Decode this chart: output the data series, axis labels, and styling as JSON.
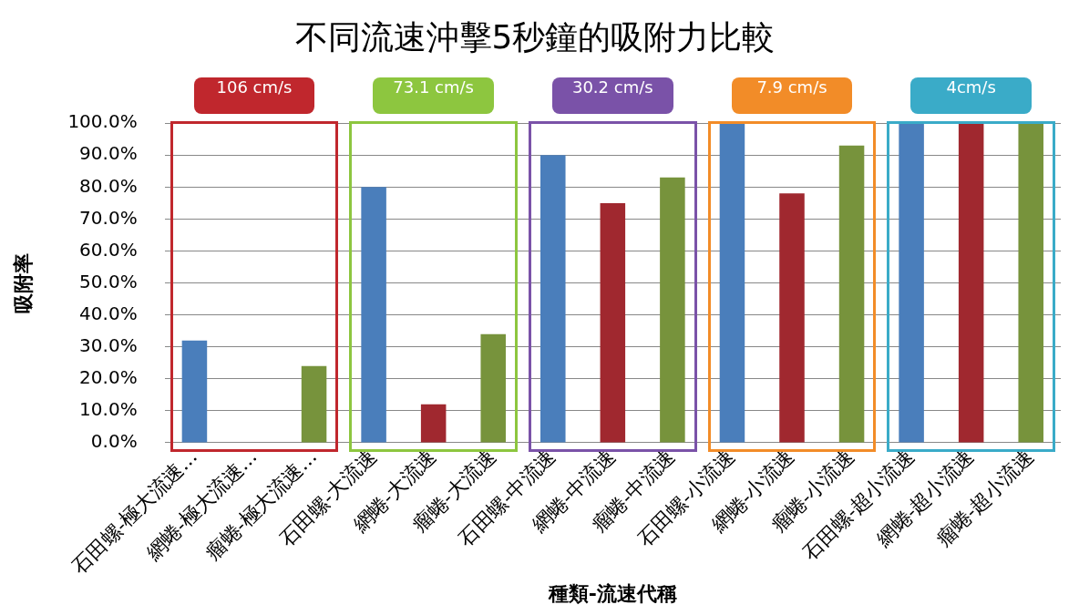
{
  "chart_data": {
    "type": "bar",
    "title": "不同流速沖擊5秒鐘的吸附力比較",
    "xlabel": "種類-流速代稱",
    "ylabel": "吸附率",
    "categories": [
      "石田螺-極大流速...",
      "網蜷-極大流速...",
      "瘤蜷-極大流速...",
      "石田螺-大流速",
      "網蜷-大流速",
      "瘤蜷-大流速",
      "石田螺-中流速",
      "網蜷-中流速",
      "瘤蜷-中流速",
      "石田螺-小流速",
      "網蜷-小流速",
      "瘤蜷-小流速",
      "石田螺-超小流速",
      "網蜷-超小流速",
      "瘤蜷-超小流速"
    ],
    "values": [
      32,
      0,
      24,
      80,
      12,
      34,
      90,
      75,
      83,
      100,
      78,
      93,
      100,
      100,
      100
    ],
    "colors": [
      "#4a7ebb",
      "#a0282f",
      "#77933c",
      "#4a7ebb",
      "#a0282f",
      "#77933c",
      "#4a7ebb",
      "#a0282f",
      "#77933c",
      "#4a7ebb",
      "#a0282f",
      "#77933c",
      "#4a7ebb",
      "#a0282f",
      "#77933c"
    ],
    "ylim": [
      0,
      100
    ],
    "yticks": [
      {
        "value": 0,
        "label": "0.0%"
      },
      {
        "value": 10,
        "label": "10.0%"
      },
      {
        "value": 20,
        "label": "20.0%"
      },
      {
        "value": 30,
        "label": "30.0%"
      },
      {
        "value": 40,
        "label": "40.0%"
      },
      {
        "value": 50,
        "label": "50.0%"
      },
      {
        "value": 60,
        "label": "60.0%"
      },
      {
        "value": 70,
        "label": "70.0%"
      },
      {
        "value": 80,
        "label": "80.0%"
      },
      {
        "value": 90,
        "label": "90.0%"
      },
      {
        "value": 100,
        "label": "100.0%"
      }
    ],
    "grid": "y",
    "annotations": [
      "106 cm/s",
      "73.1 cm/s",
      "30.2 cm/s",
      "7.9 cm/s",
      "4cm/s"
    ]
  }
}
